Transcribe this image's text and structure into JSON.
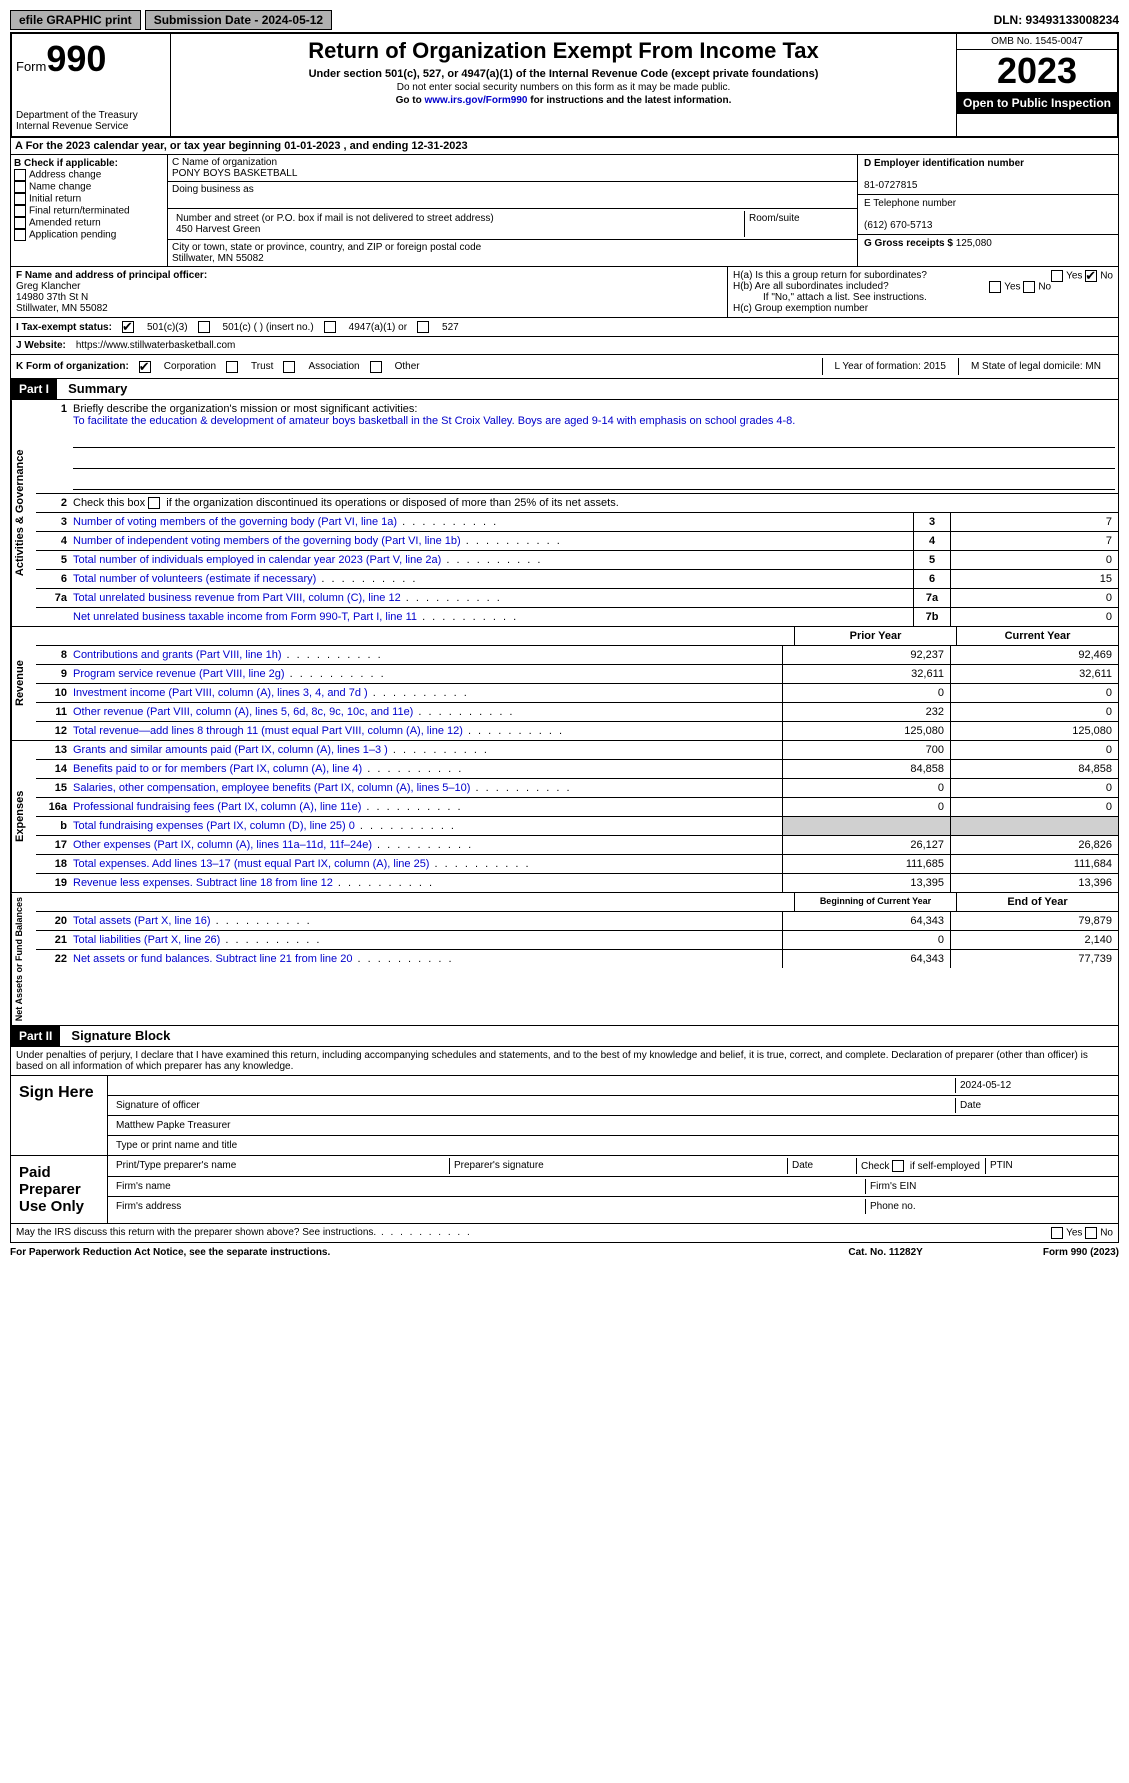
{
  "top": {
    "efile": "efile GRAPHIC print",
    "submission_label": "Submission Date - 2024-05-12",
    "dln": "DLN: 93493133008234"
  },
  "header": {
    "form_word": "Form",
    "form_num": "990",
    "title": "Return of Organization Exempt From Income Tax",
    "subtitle": "Under section 501(c), 527, or 4947(a)(1) of the Internal Revenue Code (except private foundations)",
    "note1": "Do not enter social security numbers on this form as it may be made public.",
    "note2_prefix": "Go to ",
    "note2_link": "www.irs.gov/Form990",
    "note2_suffix": " for instructions and the latest information.",
    "dept": "Department of the Treasury",
    "irs": "Internal Revenue Service",
    "omb": "OMB No. 1545-0047",
    "year": "2023",
    "inspect": "Open to Public Inspection"
  },
  "line_a": "A For the 2023 calendar year, or tax year beginning 01-01-2023   , and ending 12-31-2023",
  "col_b": {
    "label": "B Check if applicable:",
    "opts": [
      "Address change",
      "Name change",
      "Initial return",
      "Final return/terminated",
      "Amended return",
      "Application pending"
    ]
  },
  "col_c": {
    "name_label": "C Name of organization",
    "name": "PONY BOYS BASKETBALL",
    "dba_label": "Doing business as",
    "street_label": "Number and street (or P.O. box if mail is not delivered to street address)",
    "street": "450 Harvest Green",
    "room_label": "Room/suite",
    "city_label": "City or town, state or province, country, and ZIP or foreign postal code",
    "city": "Stillwater, MN  55082"
  },
  "col_d": {
    "ein_label": "D Employer identification number",
    "ein": "81-0727815",
    "phone_label": "E Telephone number",
    "phone": "(612) 670-5713",
    "gross_label": "G Gross receipts $",
    "gross": "125,080"
  },
  "row_f": {
    "f_label": "F  Name and address of principal officer:",
    "f_name": "Greg Klancher",
    "f_addr1": "14980 37th St N",
    "f_addr2": "Stillwater, MN  55082",
    "ha": "H(a)  Is this a group return for subordinates?",
    "hb": "H(b)  Are all subordinates included?",
    "hb_note": "If \"No,\" attach a list. See instructions.",
    "hc": "H(c)  Group exemption number"
  },
  "row_i": {
    "label": "I  Tax-exempt status:",
    "o1": "501(c)(3)",
    "o2": "501(c) (  ) (insert no.)",
    "o3": "4947(a)(1) or",
    "o4": "527"
  },
  "row_j": {
    "label": "J  Website:",
    "value": "https://www.stillwaterbasketball.com"
  },
  "row_k": {
    "label": "K Form of organization:",
    "o1": "Corporation",
    "o2": "Trust",
    "o3": "Association",
    "o4": "Other",
    "l": "L Year of formation: 2015",
    "m": "M State of legal domicile: MN"
  },
  "part1": {
    "tag": "Part I",
    "title": "Summary"
  },
  "governance": {
    "label": "Activities & Governance",
    "l1_label": "Briefly describe the organization's mission or most significant activities:",
    "l1_text": "To facilitate the education & development of amateur boys basketball in the St Croix Valley. Boys are aged 9-14 with emphasis on school grades 4-8.",
    "l2": "Check this box      if the organization discontinued its operations or disposed of more than 25% of its net assets.",
    "l3": "Number of voting members of the governing body (Part VI, line 1a)",
    "l3v": "7",
    "l4": "Number of independent voting members of the governing body (Part VI, line 1b)",
    "l4v": "7",
    "l5": "Total number of individuals employed in calendar year 2023 (Part V, line 2a)",
    "l5v": "0",
    "l6": "Total number of volunteers (estimate if necessary)",
    "l6v": "15",
    "l7a": "Total unrelated business revenue from Part VIII, column (C), line 12",
    "l7av": "0",
    "l7b": "Net unrelated business taxable income from Form 990-T, Part I, line 11",
    "l7bv": "0"
  },
  "revenue": {
    "label": "Revenue",
    "hdr_prior": "Prior Year",
    "hdr_curr": "Current Year",
    "rows": [
      {
        "n": "8",
        "d": "Contributions and grants (Part VIII, line 1h)",
        "p": "92,237",
        "c": "92,469"
      },
      {
        "n": "9",
        "d": "Program service revenue (Part VIII, line 2g)",
        "p": "32,611",
        "c": "32,611"
      },
      {
        "n": "10",
        "d": "Investment income (Part VIII, column (A), lines 3, 4, and 7d )",
        "p": "0",
        "c": "0"
      },
      {
        "n": "11",
        "d": "Other revenue (Part VIII, column (A), lines 5, 6d, 8c, 9c, 10c, and 11e)",
        "p": "232",
        "c": "0"
      },
      {
        "n": "12",
        "d": "Total revenue—add lines 8 through 11 (must equal Part VIII, column (A), line 12)",
        "p": "125,080",
        "c": "125,080"
      }
    ]
  },
  "expenses": {
    "label": "Expenses",
    "rows": [
      {
        "n": "13",
        "d": "Grants and similar amounts paid (Part IX, column (A), lines 1–3 )",
        "p": "700",
        "c": "0"
      },
      {
        "n": "14",
        "d": "Benefits paid to or for members (Part IX, column (A), line 4)",
        "p": "84,858",
        "c": "84,858"
      },
      {
        "n": "15",
        "d": "Salaries, other compensation, employee benefits (Part IX, column (A), lines 5–10)",
        "p": "0",
        "c": "0"
      },
      {
        "n": "16a",
        "d": "Professional fundraising fees (Part IX, column (A), line 11e)",
        "p": "0",
        "c": "0"
      },
      {
        "n": "b",
        "d": "Total fundraising expenses (Part IX, column (D), line 25) 0",
        "p": "",
        "c": "",
        "grey": true
      },
      {
        "n": "17",
        "d": "Other expenses (Part IX, column (A), lines 11a–11d, 11f–24e)",
        "p": "26,127",
        "c": "26,826"
      },
      {
        "n": "18",
        "d": "Total expenses. Add lines 13–17 (must equal Part IX, column (A), line 25)",
        "p": "111,685",
        "c": "111,684"
      },
      {
        "n": "19",
        "d": "Revenue less expenses. Subtract line 18 from line 12",
        "p": "13,395",
        "c": "13,396"
      }
    ]
  },
  "netassets": {
    "label": "Net Assets or Fund Balances",
    "hdr_begin": "Beginning of Current Year",
    "hdr_end": "End of Year",
    "rows": [
      {
        "n": "20",
        "d": "Total assets (Part X, line 16)",
        "p": "64,343",
        "c": "79,879"
      },
      {
        "n": "21",
        "d": "Total liabilities (Part X, line 26)",
        "p": "0",
        "c": "2,140"
      },
      {
        "n": "22",
        "d": "Net assets or fund balances. Subtract line 21 from line 20",
        "p": "64,343",
        "c": "77,739"
      }
    ]
  },
  "part2": {
    "tag": "Part II",
    "title": "Signature Block",
    "declaration": "Under penalties of perjury, I declare that I have examined this return, including accompanying schedules and statements, and to the best of my knowledge and belief, it is true, correct, and complete. Declaration of preparer (other than officer) is based on all information of which preparer has any knowledge.",
    "sign_here": "Sign Here",
    "sig_date": "2024-05-12",
    "sig_officer_label": "Signature of officer",
    "sig_name": "Matthew Papke  Treasurer",
    "sig_title_label": "Type or print name and title",
    "date_label": "Date",
    "paid_label": "Paid Preparer Use Only",
    "prep_name_label": "Print/Type preparer's name",
    "prep_sig_label": "Preparer's signature",
    "check_self": "Check       if self-employed",
    "ptin_label": "PTIN",
    "firm_name": "Firm's name",
    "firm_ein": "Firm's EIN",
    "firm_addr": "Firm's address",
    "phone_no": "Phone no.",
    "discuss": "May the IRS discuss this return with the preparer shown above? See instructions."
  },
  "footer": {
    "left": "For Paperwork Reduction Act Notice, see the separate instructions.",
    "mid": "Cat. No. 11282Y",
    "right": "Form 990 (2023)"
  }
}
